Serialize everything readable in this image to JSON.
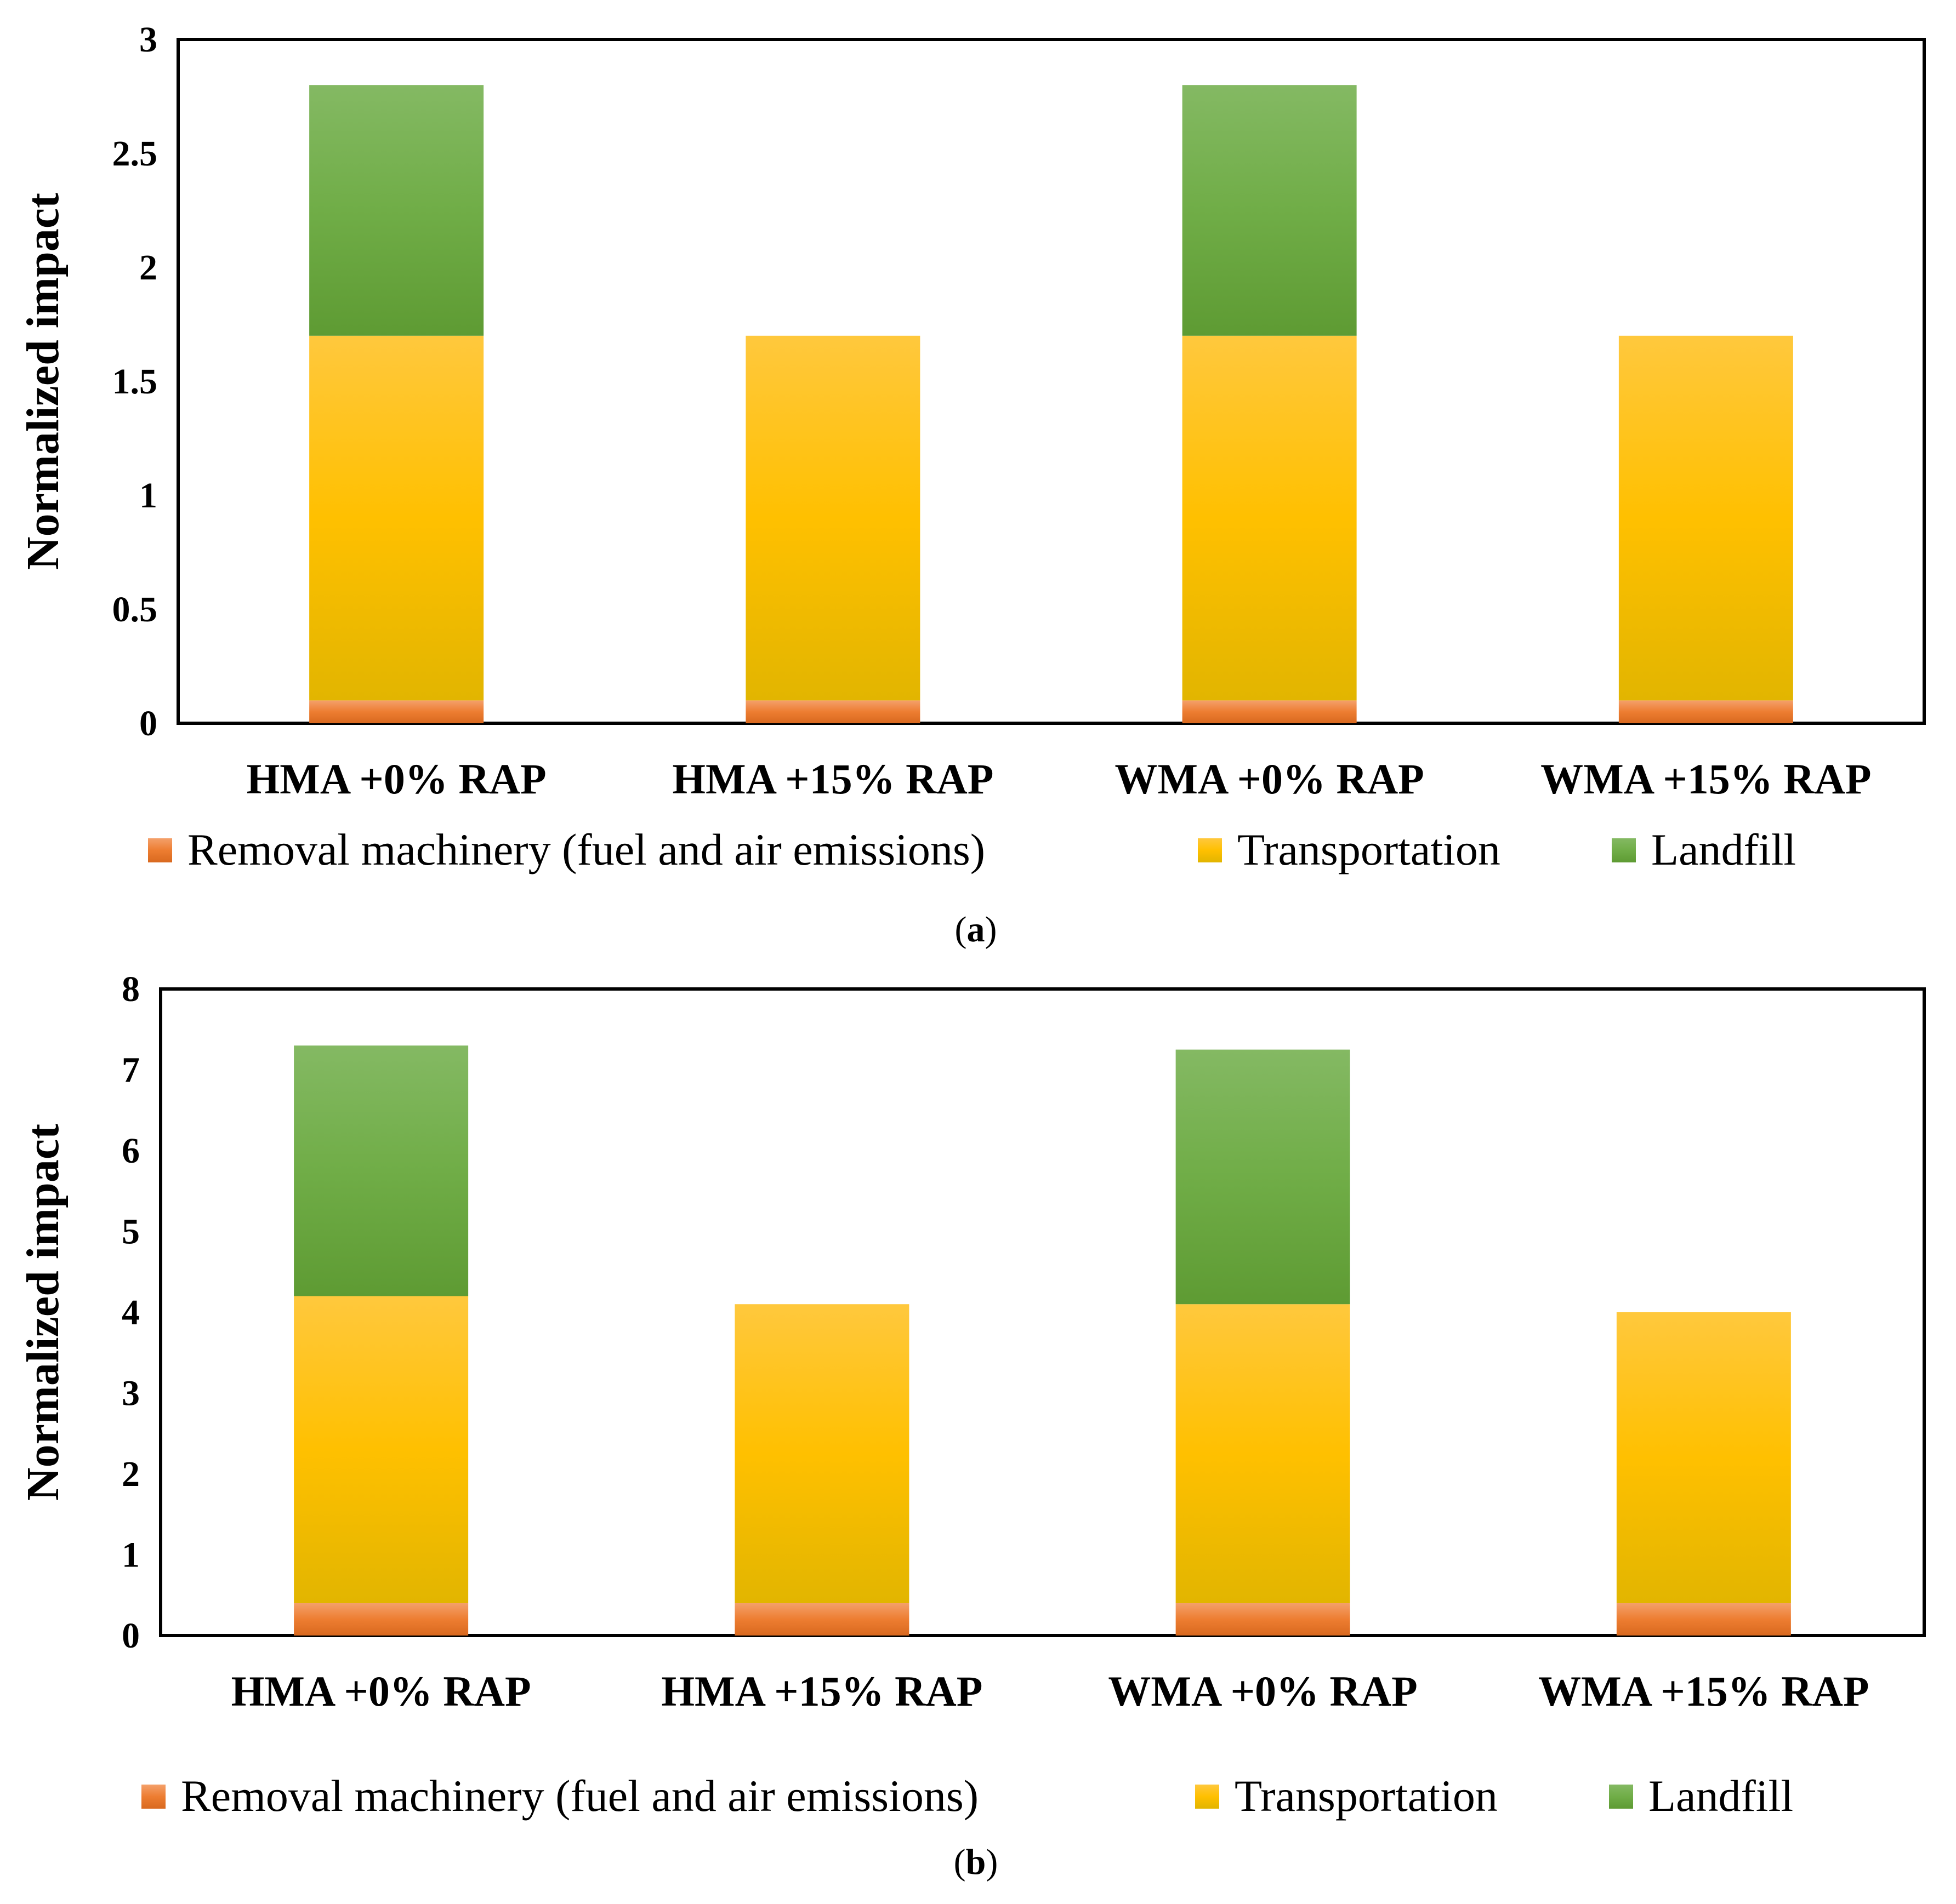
{
  "chart_data": [
    {
      "type": "bar",
      "stacked": true,
      "panel": "a",
      "ylabel": "Normalized impact",
      "ylim": [
        0,
        3
      ],
      "yticks": [
        "0",
        "0.5",
        "1",
        "1.5",
        "2",
        "2.5",
        "3"
      ],
      "categories": [
        "HMA +0% RAP",
        "HMA +15% RAP",
        "WMA +0% RAP",
        "WMA +15% RAP"
      ],
      "series": [
        {
          "name": "Removal machinery (fuel and air emissions)",
          "color": "#ED7D31",
          "values": [
            0.1,
            0.1,
            0.1,
            0.1
          ]
        },
        {
          "name": "Transportation",
          "color": "#FFC000",
          "values": [
            1.6,
            1.6,
            1.6,
            1.6
          ]
        },
        {
          "name": "Landfill",
          "color": "#70AD47",
          "values": [
            1.1,
            0,
            1.1,
            0
          ]
        }
      ],
      "legend_position": "bottom"
    },
    {
      "type": "bar",
      "stacked": true,
      "panel": "b",
      "ylabel": "Normalized impact",
      "ylim": [
        0,
        8
      ],
      "yticks": [
        "0",
        "1",
        "2",
        "3",
        "4",
        "5",
        "6",
        "7",
        "8"
      ],
      "categories": [
        "HMA +0% RAP",
        "HMA +15% RAP",
        "WMA +0% RAP",
        "WMA +15% RAP"
      ],
      "series": [
        {
          "name": "Removal machinery (fuel and air emissions)",
          "color": "#ED7D31",
          "values": [
            0.4,
            0.4,
            0.4,
            0.4
          ]
        },
        {
          "name": "Transportation",
          "color": "#FFC000",
          "values": [
            3.8,
            3.7,
            3.7,
            3.6
          ]
        },
        {
          "name": "Landfill",
          "color": "#70AD47",
          "values": [
            3.1,
            0,
            3.15,
            0
          ]
        }
      ],
      "legend_position": "bottom"
    }
  ],
  "captions": {
    "a": "a",
    "b": "b"
  }
}
